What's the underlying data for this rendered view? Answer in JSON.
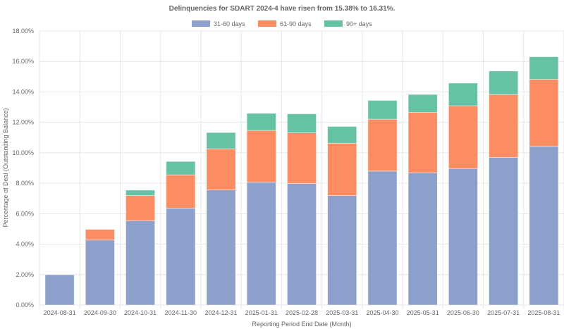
{
  "chart_data": {
    "type": "bar",
    "stacked": true,
    "title": "Delinquencies for SDART 2024-4 have risen from 15.38% to 16.31%.",
    "xlabel": "Reporting Period End Date (Month)",
    "ylabel": "Percentage of Deal (Outstanding Balance)",
    "ylim": [
      0,
      18
    ],
    "y_ticks": [
      "0.00%",
      "2.00%",
      "4.00%",
      "6.00%",
      "8.00%",
      "10.00%",
      "12.00%",
      "14.00%",
      "16.00%",
      "18.00%"
    ],
    "grid": true,
    "legend_position": "top-center",
    "categories": [
      "2024-08-31",
      "2024-09-30",
      "2024-10-31",
      "2024-11-30",
      "2024-12-31",
      "2025-01-31",
      "2025-02-28",
      "2025-03-31",
      "2025-04-30",
      "2025-05-31",
      "2025-06-30",
      "2025-07-31",
      "2025-08-31"
    ],
    "series": [
      {
        "name": "31-60 days",
        "color": "#8da0cb",
        "values": [
          1.99,
          4.27,
          5.54,
          6.36,
          7.56,
          8.07,
          7.98,
          7.19,
          8.8,
          8.69,
          8.97,
          9.69,
          10.42
        ]
      },
      {
        "name": "61-90 days",
        "color": "#fc8d62",
        "values": [
          0.0,
          0.7,
          1.65,
          2.19,
          2.7,
          3.4,
          3.33,
          3.44,
          3.41,
          3.96,
          4.12,
          4.14,
          4.41
        ]
      },
      {
        "name": "90+ days",
        "color": "#66c2a5",
        "values": [
          0.0,
          0.0,
          0.36,
          0.88,
          1.07,
          1.12,
          1.25,
          1.1,
          1.23,
          1.18,
          1.49,
          1.54,
          1.48
        ]
      }
    ]
  }
}
